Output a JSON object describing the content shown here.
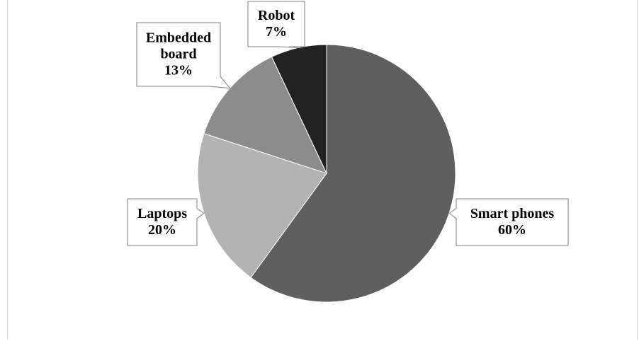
{
  "chart_data": {
    "type": "pie",
    "title": "",
    "slices": [
      {
        "label": "Smart phones",
        "value": 60,
        "value_label": "60%",
        "color": "#5f5f5f"
      },
      {
        "label": "Laptops",
        "value": 20,
        "value_label": "20%",
        "color": "#b3b3b3"
      },
      {
        "label": "Embedded board",
        "value": 13,
        "value_label": "13%",
        "color": "#8c8c8c"
      },
      {
        "label": "Robot",
        "value": 7,
        "value_label": "7%",
        "color": "#222222"
      }
    ],
    "start": "12 o'clock",
    "direction": "clockwise",
    "legend": "none",
    "data_labels": "callouts"
  }
}
